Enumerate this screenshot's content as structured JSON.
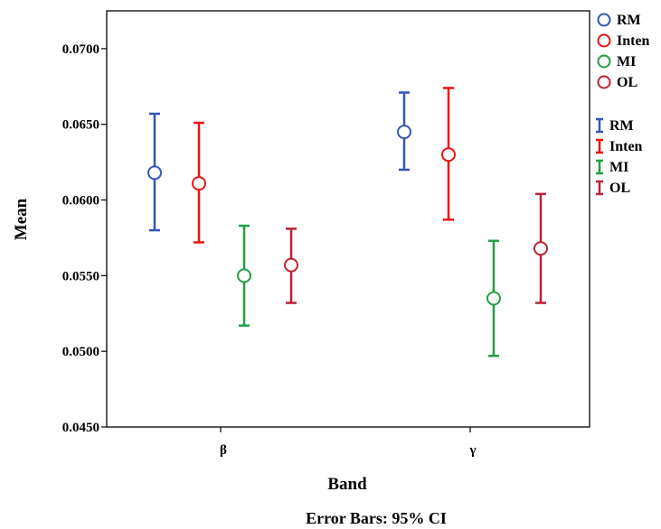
{
  "chart_data": {
    "type": "scatter",
    "subtype": "error-bar",
    "ylabel": "Mean",
    "xlabel": "Band",
    "footnote": "Error Bars: 95% CI",
    "ylim": [
      0.045,
      0.0725
    ],
    "yticks": [
      "0.0450",
      "0.0500",
      "0.0550",
      "0.0600",
      "0.0650",
      "0.0700"
    ],
    "categories": [
      "β",
      "γ"
    ],
    "legend_position": "right",
    "series": [
      {
        "name": "RM",
        "color": "#3355bb",
        "mean": [
          0.0618,
          0.0645
        ],
        "lower": [
          0.058,
          0.062
        ],
        "upper": [
          0.0657,
          0.0671
        ]
      },
      {
        "name": "Inten",
        "color": "#ee1111",
        "mean": [
          0.0611,
          0.063
        ],
        "lower": [
          0.0572,
          0.0587
        ],
        "upper": [
          0.0651,
          0.0674
        ]
      },
      {
        "name": "MI",
        "color": "#22a044",
        "mean": [
          0.055,
          0.0535
        ],
        "lower": [
          0.0517,
          0.0497
        ],
        "upper": [
          0.0583,
          0.0573
        ]
      },
      {
        "name": "OL",
        "color": "#bb2233",
        "mean": [
          0.0557,
          0.0568
        ],
        "lower": [
          0.0532,
          0.0532
        ],
        "upper": [
          0.0581,
          0.0604
        ]
      }
    ]
  }
}
